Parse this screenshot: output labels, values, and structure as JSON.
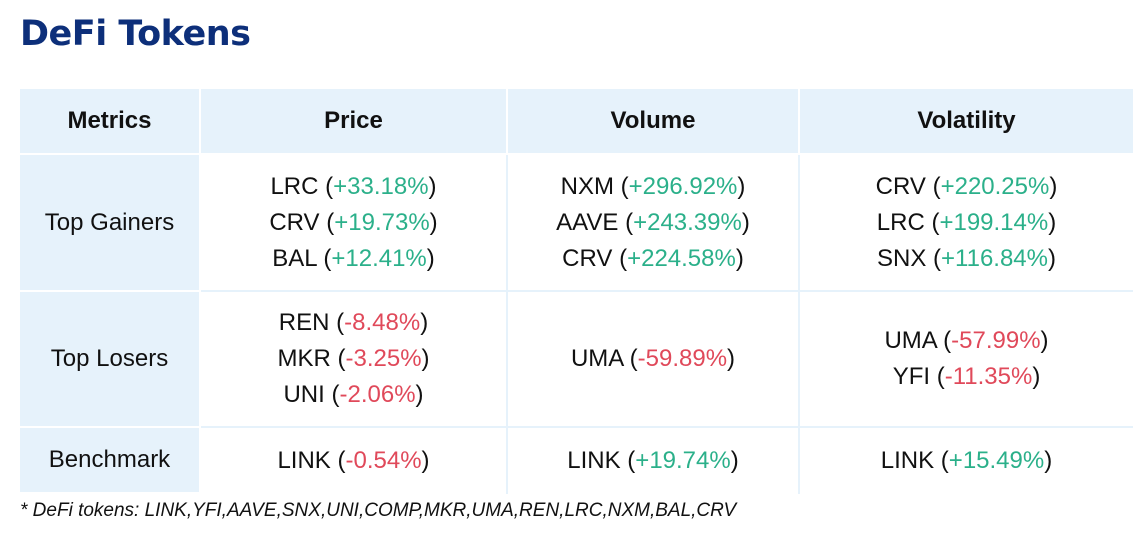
{
  "title": "DeFi Tokens",
  "colors": {
    "title": "#0d2f7a",
    "header_bg": "#e6f2fb",
    "positive": "#2bb08a",
    "negative": "#e0495a"
  },
  "table": {
    "headers": [
      "Metrics",
      "Price",
      "Volume",
      "Volatility"
    ],
    "rows": [
      {
        "label": "Top Gainers",
        "price": [
          {
            "token": "LRC",
            "change": "+33.18%",
            "sign": "pos"
          },
          {
            "token": "CRV",
            "change": "+19.73%",
            "sign": "pos"
          },
          {
            "token": "BAL",
            "change": "+12.41%",
            "sign": "pos"
          }
        ],
        "volume": [
          {
            "token": "NXM",
            "change": "+296.92%",
            "sign": "pos"
          },
          {
            "token": "AAVE",
            "change": "+243.39%",
            "sign": "pos"
          },
          {
            "token": "CRV",
            "change": "+224.58%",
            "sign": "pos"
          }
        ],
        "volatility": [
          {
            "token": "CRV",
            "change": "+220.25%",
            "sign": "pos"
          },
          {
            "token": "LRC",
            "change": "+199.14%",
            "sign": "pos"
          },
          {
            "token": "SNX",
            "change": "+116.84%",
            "sign": "pos"
          }
        ]
      },
      {
        "label": "Top Losers",
        "price": [
          {
            "token": "REN",
            "change": "-8.48%",
            "sign": "neg"
          },
          {
            "token": "MKR",
            "change": "-3.25%",
            "sign": "neg"
          },
          {
            "token": "UNI",
            "change": "-2.06%",
            "sign": "neg"
          }
        ],
        "volume": [
          {
            "token": "UMA",
            "change": "-59.89%",
            "sign": "neg"
          }
        ],
        "volatility": [
          {
            "token": "UMA",
            "change": "-57.99%",
            "sign": "neg"
          },
          {
            "token": "YFI",
            "change": "-11.35%",
            "sign": "neg"
          }
        ]
      },
      {
        "label": "Benchmark",
        "price": [
          {
            "token": "LINK",
            "change": "-0.54%",
            "sign": "neg"
          }
        ],
        "volume": [
          {
            "token": "LINK",
            "change": "+19.74%",
            "sign": "pos"
          }
        ],
        "volatility": [
          {
            "token": "LINK",
            "change": "+15.49%",
            "sign": "pos"
          }
        ]
      }
    ]
  },
  "footnote": "* DeFi tokens: LINK,YFI,AAVE,SNX,UNI,COMP,MKR,UMA,REN,LRC,NXM,BAL,CRV"
}
